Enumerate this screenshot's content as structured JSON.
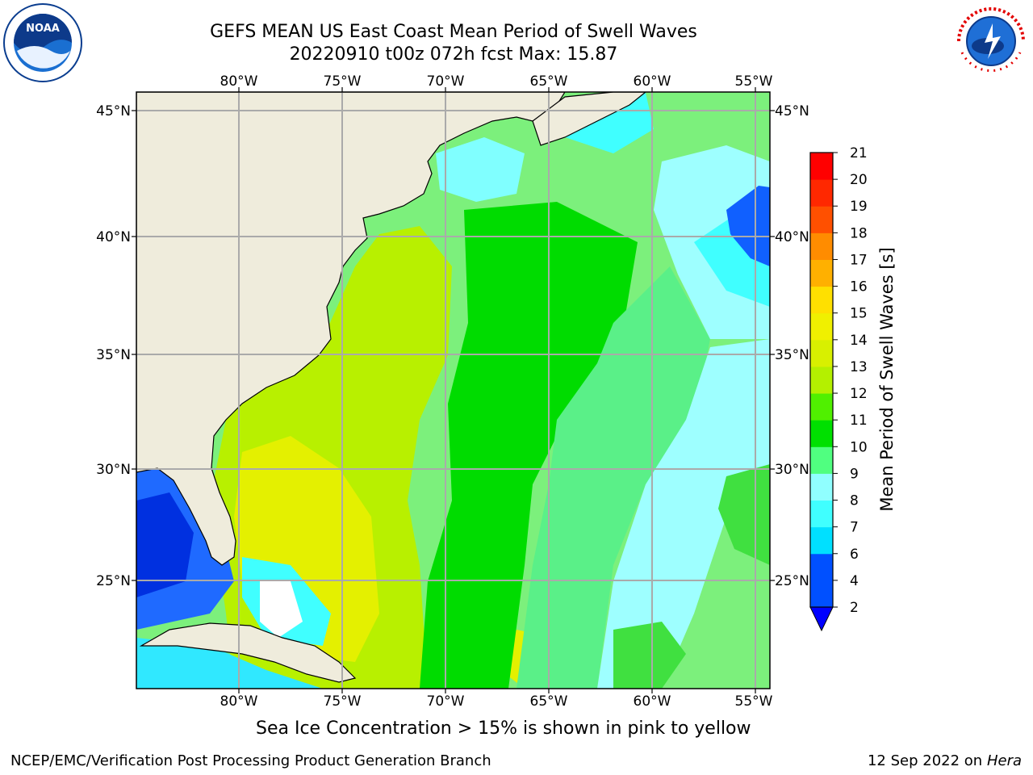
{
  "title": {
    "line1": "GEFS MEAN US East Coast Mean Period of Swell Waves",
    "line2": "20220910 t00z 072h fcst   Max: 15.87"
  },
  "map": {
    "lon_labels": [
      "80°W",
      "75°W",
      "70°W",
      "65°W",
      "60°W",
      "55°W"
    ],
    "lat_labels": [
      "45°N",
      "40°N",
      "35°N",
      "30°N",
      "25°N"
    ],
    "lon_range": [
      -85,
      -54.3
    ],
    "lat_range": [
      20.3,
      45.8
    ],
    "land_color": "#efecdc",
    "grid_color": "#aaaaaa"
  },
  "colorbar": {
    "label": "Mean Period of Swell Waves [s]",
    "ticks": [
      "2",
      "4",
      "6",
      "7",
      "8",
      "9",
      "10",
      "11",
      "12",
      "13",
      "14",
      "15",
      "16",
      "17",
      "18",
      "19",
      "20",
      "21"
    ],
    "colors": [
      "#0050ff",
      "#00e0ff",
      "#40ffff",
      "#90ffff",
      "#50ff80",
      "#00e000",
      "#50f000",
      "#b4f000",
      "#d8f000",
      "#f0f000",
      "#ffe000",
      "#ffb000",
      "#ff8c00",
      "#ff5000",
      "#ff2800",
      "#ff0000"
    ],
    "under_color": "#0000ff"
  },
  "note": "Sea Ice Concentration > 15% is shown in pink to yellow",
  "footer": {
    "left": "NCEP/EMC/Verification Post Processing Product Generation Branch",
    "date": "12 Sep 2022 on",
    "host": "Hera"
  },
  "logos": {
    "noaa": "NOAA",
    "nws": "NATIONAL WEATHER SERVICE"
  },
  "icons": [
    "noaa-logo-icon",
    "nws-logo-icon"
  ]
}
